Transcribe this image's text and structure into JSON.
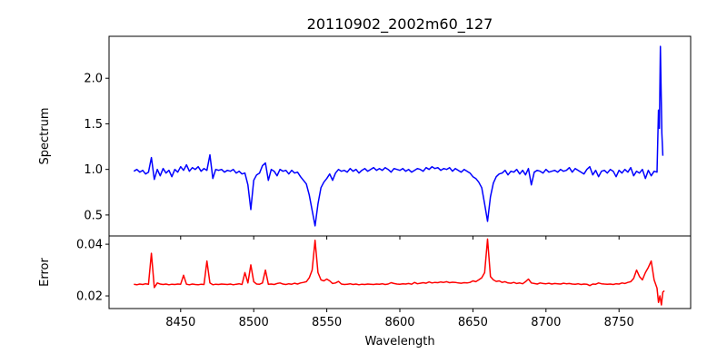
{
  "chart_data": [
    {
      "type": "line",
      "title": "20110902_2002m60_127",
      "xlabel": "",
      "ylabel": "Spectrum",
      "xlim": [
        8401,
        8799
      ],
      "ylim": [
        0.27,
        2.46
      ],
      "yticks": [
        0.5,
        1.0,
        1.5,
        2.0
      ],
      "ytick_labels": [
        "0.5",
        "1.0",
        "1.5",
        "2.0"
      ],
      "color": "#0000ff",
      "series": {
        "name": "Spectrum",
        "x_start": 8418,
        "x_step": 2,
        "values": [
          0.98,
          1.0,
          0.97,
          0.99,
          0.95,
          0.97,
          1.13,
          0.89,
          1.0,
          0.93,
          1.01,
          0.96,
          0.99,
          0.92,
          1.0,
          0.97,
          1.03,
          0.99,
          1.05,
          0.98,
          1.02,
          1.0,
          1.03,
          0.98,
          1.01,
          0.99,
          1.16,
          0.9,
          1.0,
          0.99,
          1.0,
          0.97,
          0.99,
          0.98,
          1.0,
          0.96,
          0.98,
          0.95,
          0.96,
          0.83,
          0.56,
          0.88,
          0.94,
          0.96,
          1.04,
          1.07,
          0.88,
          1.0,
          0.98,
          0.93,
          1.0,
          0.98,
          0.99,
          0.95,
          0.99,
          0.96,
          0.97,
          0.92,
          0.88,
          0.84,
          0.72,
          0.55,
          0.38,
          0.62,
          0.8,
          0.86,
          0.9,
          0.95,
          0.88,
          0.96,
          1.0,
          0.98,
          0.99,
          0.97,
          1.01,
          0.98,
          1.0,
          0.96,
          0.99,
          1.01,
          0.98,
          1.0,
          1.02,
          0.99,
          1.01,
          0.99,
          1.02,
          1.0,
          0.97,
          1.01,
          1.0,
          0.99,
          1.01,
          0.98,
          1.0,
          0.97,
          0.99,
          1.01,
          1.0,
          0.98,
          1.02,
          1.0,
          1.03,
          1.01,
          1.02,
          0.99,
          1.01,
          1.0,
          1.02,
          0.98,
          1.01,
          0.99,
          0.97,
          1.0,
          0.98,
          0.96,
          0.92,
          0.9,
          0.86,
          0.8,
          0.62,
          0.43,
          0.7,
          0.85,
          0.92,
          0.95,
          0.96,
          0.99,
          0.94,
          0.98,
          0.97,
          1.0,
          0.95,
          0.99,
          0.94,
          1.01,
          0.83,
          0.97,
          0.99,
          0.98,
          0.96,
          1.0,
          0.97,
          0.98,
          0.99,
          0.97,
          1.0,
          0.98,
          0.99,
          1.02,
          0.97,
          1.01,
          0.99,
          0.97,
          0.95,
          1.0,
          1.03,
          0.94,
          0.99,
          0.92,
          0.98,
          0.99,
          0.96,
          1.0,
          0.98,
          0.92,
          0.99,
          0.96,
          1.0,
          0.97,
          1.02,
          0.93,
          0.98,
          0.96,
          1.0,
          0.9,
          0.99,
          0.93,
          0.98,
          0.97
        ],
        "tail_x": [
          8777,
          8777.6,
          8778.3,
          8779.3,
          8780
        ],
        "tail_y": [
          1.65,
          1.45,
          2.35,
          1.4,
          1.15
        ]
      }
    },
    {
      "type": "line",
      "xlabel": "Wavelength",
      "ylabel": "Error",
      "xlim": [
        8401,
        8799
      ],
      "ylim": [
        0.0151,
        0.0432
      ],
      "xticks": [
        8450,
        8500,
        8550,
        8600,
        8650,
        8700,
        8750
      ],
      "xtick_labels": [
        "8450",
        "8500",
        "8550",
        "8600",
        "8650",
        "8700",
        "8750"
      ],
      "yticks": [
        0.02,
        0.04
      ],
      "ytick_labels": [
        "0.02",
        "0.04"
      ],
      "color": "#ff0000",
      "series": {
        "name": "Error",
        "x_start": 8418,
        "x_step": 2,
        "values": [
          0.0245,
          0.0243,
          0.0246,
          0.0244,
          0.0247,
          0.0245,
          0.0365,
          0.0232,
          0.025,
          0.0246,
          0.0244,
          0.0246,
          0.0243,
          0.0245,
          0.0244,
          0.0246,
          0.0245,
          0.028,
          0.0245,
          0.0243,
          0.0246,
          0.0244,
          0.0243,
          0.0245,
          0.0244,
          0.0335,
          0.025,
          0.0243,
          0.0245,
          0.0244,
          0.0246,
          0.0245,
          0.0244,
          0.0246,
          0.0243,
          0.0245,
          0.0247,
          0.0244,
          0.029,
          0.025,
          0.032,
          0.0255,
          0.0246,
          0.0245,
          0.025,
          0.03,
          0.0245,
          0.0246,
          0.0244,
          0.0248,
          0.025,
          0.0246,
          0.0244,
          0.0247,
          0.0245,
          0.0249,
          0.0246,
          0.025,
          0.0252,
          0.0255,
          0.027,
          0.03,
          0.0415,
          0.029,
          0.0262,
          0.0258,
          0.0265,
          0.0258,
          0.0248,
          0.025,
          0.0256,
          0.0246,
          0.0244,
          0.0245,
          0.0247,
          0.0244,
          0.0246,
          0.0243,
          0.0245,
          0.0244,
          0.0246,
          0.0245,
          0.0244,
          0.0246,
          0.0245,
          0.0247,
          0.0244,
          0.0246,
          0.0251,
          0.0248,
          0.0246,
          0.0245,
          0.0247,
          0.0246,
          0.0248,
          0.0245,
          0.0252,
          0.0247,
          0.0249,
          0.0251,
          0.0249,
          0.0254,
          0.025,
          0.0252,
          0.0251,
          0.0254,
          0.0252,
          0.0255,
          0.0251,
          0.0253,
          0.0252,
          0.025,
          0.0249,
          0.0251,
          0.025,
          0.0252,
          0.0258,
          0.0255,
          0.0262,
          0.027,
          0.029,
          0.042,
          0.0275,
          0.0262,
          0.0256,
          0.0258,
          0.0252,
          0.0255,
          0.025,
          0.0249,
          0.0252,
          0.0248,
          0.025,
          0.0247,
          0.0255,
          0.0265,
          0.025,
          0.0248,
          0.0246,
          0.025,
          0.0248,
          0.0247,
          0.0249,
          0.0246,
          0.0248,
          0.0247,
          0.0246,
          0.0249,
          0.0247,
          0.0248,
          0.0246,
          0.0245,
          0.0247,
          0.0244,
          0.0246,
          0.0245,
          0.024,
          0.0246,
          0.0245,
          0.025,
          0.0247,
          0.0246,
          0.0245,
          0.0246,
          0.0244,
          0.0247,
          0.0246,
          0.025,
          0.0248,
          0.0252,
          0.0255,
          0.0268,
          0.03,
          0.0275,
          0.0262,
          0.029,
          0.031,
          0.0335,
          0.0262,
          0.023
        ],
        "tail_x": [
          8777,
          8778,
          8779,
          8780,
          8781
        ],
        "tail_y": [
          0.0175,
          0.02,
          0.0165,
          0.0215,
          0.022
        ]
      }
    }
  ]
}
